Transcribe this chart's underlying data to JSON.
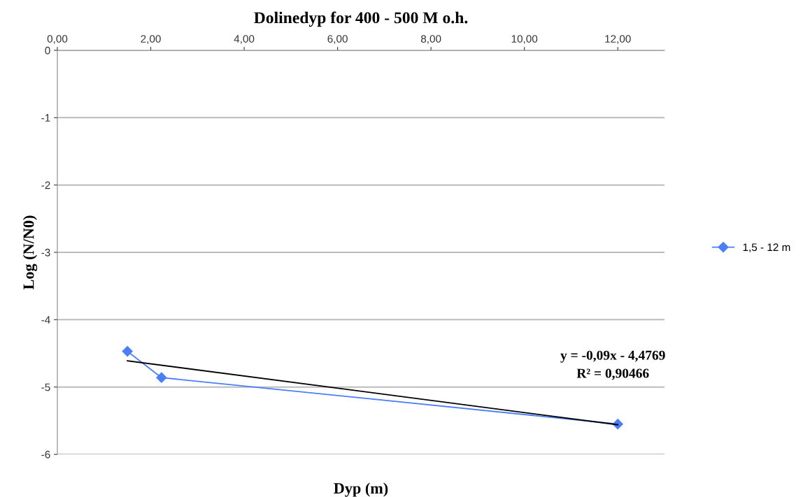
{
  "chart_data": {
    "type": "line",
    "title": "Dolinedyp for 400 - 500 M o.h.",
    "xlabel": "Dyp (m)",
    "ylabel": "Log (N/N0)",
    "xlim": [
      0,
      13
    ],
    "xticks": [
      {
        "value": 0,
        "label": "0,00"
      },
      {
        "value": 2,
        "label": "2,00"
      },
      {
        "value": 4,
        "label": "4,00"
      },
      {
        "value": 6,
        "label": "6,00"
      },
      {
        "value": 8,
        "label": "8,00"
      },
      {
        "value": 10,
        "label": "10,00"
      },
      {
        "value": 12,
        "label": "12,00"
      }
    ],
    "ylim": [
      -6,
      0
    ],
    "yticks": [
      0,
      -1,
      -2,
      -3,
      -4,
      -5,
      -6
    ],
    "grid": "y",
    "legend": "right",
    "series": [
      {
        "name": "1,5 - 12 m",
        "color": "#4a7ef7",
        "marker": "diamond",
        "x": [
          1.5,
          2.23,
          12
        ],
        "values": [
          -4.47,
          -4.86,
          -5.55
        ]
      },
      {
        "type": "line",
        "color": "#000000",
        "marker": "none",
        "x": [
          1.5,
          12
        ],
        "values": [
          -4.61,
          -5.56
        ]
      }
    ],
    "annotations": [
      "y = -0,09x - 4,4769\nR² = 0,90466"
    ]
  }
}
